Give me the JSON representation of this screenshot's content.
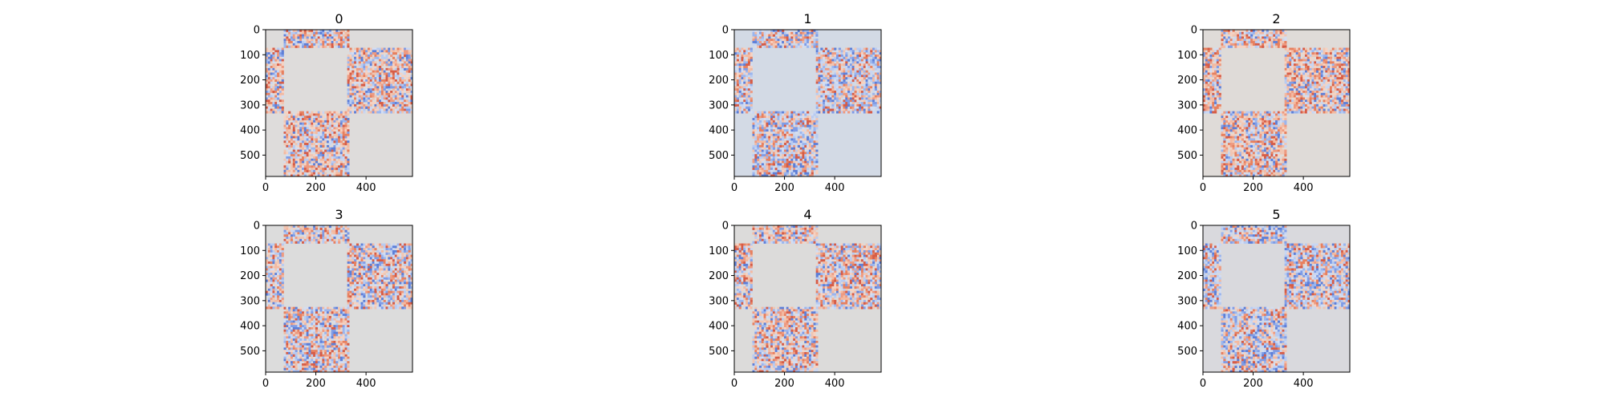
{
  "chart_data": [
    {
      "type": "heatmap",
      "title": "0",
      "colormap": "coolwarm",
      "background": "#dedcdb",
      "noise_weights": {
        "warm": 0.6,
        "cool": 0.4
      },
      "xticks": [
        0,
        200,
        400
      ],
      "yticks": [
        0,
        100,
        200,
        300,
        400,
        500
      ],
      "xlim": [
        0,
        585
      ],
      "ylim": [
        585,
        0
      ],
      "noise_blocks": [
        {
          "x": [
            72,
            325
          ],
          "y": [
            0,
            72
          ]
        },
        {
          "x": [
            325,
            585
          ],
          "y": [
            72,
            325
          ]
        },
        {
          "x": [
            0,
            72
          ],
          "y": [
            72,
            325
          ]
        },
        {
          "x": [
            72,
            325
          ],
          "y": [
            325,
            585
          ]
        }
      ]
    },
    {
      "type": "heatmap",
      "title": "1",
      "colormap": "coolwarm",
      "background": "#d3dae5",
      "noise_weights": {
        "warm": 0.45,
        "cool": 0.55
      },
      "xticks": [
        0,
        200,
        400
      ],
      "yticks": [
        0,
        100,
        200,
        300,
        400,
        500
      ],
      "xlim": [
        0,
        585
      ],
      "ylim": [
        585,
        0
      ],
      "noise_blocks": [
        {
          "x": [
            72,
            325
          ],
          "y": [
            0,
            72
          ]
        },
        {
          "x": [
            325,
            585
          ],
          "y": [
            72,
            325
          ]
        },
        {
          "x": [
            0,
            72
          ],
          "y": [
            72,
            325
          ]
        },
        {
          "x": [
            72,
            325
          ],
          "y": [
            325,
            585
          ]
        }
      ]
    },
    {
      "type": "heatmap",
      "title": "2",
      "colormap": "coolwarm",
      "background": "#dfdbd8",
      "noise_weights": {
        "warm": 0.62,
        "cool": 0.38
      },
      "xticks": [
        0,
        200,
        400
      ],
      "yticks": [
        0,
        100,
        200,
        300,
        400,
        500
      ],
      "xlim": [
        0,
        585
      ],
      "ylim": [
        585,
        0
      ],
      "noise_blocks": [
        {
          "x": [
            72,
            325
          ],
          "y": [
            0,
            72
          ]
        },
        {
          "x": [
            325,
            585
          ],
          "y": [
            72,
            325
          ]
        },
        {
          "x": [
            0,
            72
          ],
          "y": [
            72,
            325
          ]
        },
        {
          "x": [
            72,
            325
          ],
          "y": [
            325,
            585
          ]
        }
      ]
    },
    {
      "type": "heatmap",
      "title": "3",
      "colormap": "coolwarm",
      "background": "#dcdcdc",
      "noise_weights": {
        "warm": 0.5,
        "cool": 0.5
      },
      "xticks": [
        0,
        200,
        400
      ],
      "yticks": [
        0,
        100,
        200,
        300,
        400,
        500
      ],
      "xlim": [
        0,
        585
      ],
      "ylim": [
        585,
        0
      ],
      "noise_blocks": [
        {
          "x": [
            72,
            325
          ],
          "y": [
            0,
            72
          ]
        },
        {
          "x": [
            325,
            585
          ],
          "y": [
            72,
            325
          ]
        },
        {
          "x": [
            0,
            72
          ],
          "y": [
            72,
            325
          ]
        },
        {
          "x": [
            72,
            325
          ],
          "y": [
            325,
            585
          ]
        }
      ]
    },
    {
      "type": "heatmap",
      "title": "4",
      "colormap": "coolwarm",
      "background": "#dcdbda",
      "noise_weights": {
        "warm": 0.55,
        "cool": 0.45
      },
      "xticks": [
        0,
        200,
        400
      ],
      "yticks": [
        0,
        100,
        200,
        300,
        400,
        500
      ],
      "xlim": [
        0,
        585
      ],
      "ylim": [
        585,
        0
      ],
      "noise_blocks": [
        {
          "x": [
            72,
            325
          ],
          "y": [
            0,
            72
          ]
        },
        {
          "x": [
            325,
            585
          ],
          "y": [
            72,
            325
          ]
        },
        {
          "x": [
            0,
            72
          ],
          "y": [
            72,
            325
          ]
        },
        {
          "x": [
            72,
            325
          ],
          "y": [
            325,
            585
          ]
        }
      ]
    },
    {
      "type": "heatmap",
      "title": "5",
      "colormap": "coolwarm",
      "background": "#d9d9dd",
      "noise_weights": {
        "warm": 0.4,
        "cool": 0.6
      },
      "xticks": [
        0,
        200,
        400
      ],
      "yticks": [
        0,
        100,
        200,
        300,
        400,
        500
      ],
      "xlim": [
        0,
        585
      ],
      "ylim": [
        585,
        0
      ],
      "noise_blocks": [
        {
          "x": [
            72,
            325
          ],
          "y": [
            0,
            72
          ]
        },
        {
          "x": [
            325,
            585
          ],
          "y": [
            72,
            325
          ]
        },
        {
          "x": [
            0,
            72
          ],
          "y": [
            72,
            325
          ]
        },
        {
          "x": [
            72,
            325
          ],
          "y": [
            325,
            585
          ]
        }
      ]
    }
  ]
}
